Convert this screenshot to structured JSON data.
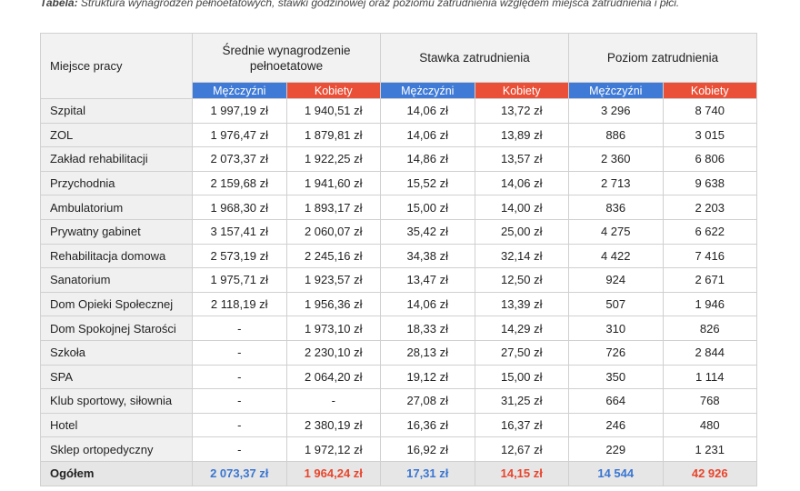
{
  "caption": {
    "label": "Tabela:",
    "text": "Struktura wynagrodzeń pełnoetatowych, stawki godzinowej oraz poziomu zatrudnienia względem miejsca zatrudnienia i płci."
  },
  "table": {
    "header": {
      "first": "Miejsce pracy",
      "groups": [
        "Średnie wynagrodzenie pełnoetatowe",
        "Stawka zatrudnienia",
        "Poziom zatrudnienia"
      ],
      "sub": [
        "Mężczyźni",
        "Kobiety",
        "Mężczyźni",
        "Kobiety",
        "Mężczyźni",
        "Kobiety"
      ]
    },
    "rows": [
      [
        "Szpital",
        "1 997,19 zł",
        "1 940,51 zł",
        "14,06 zł",
        "13,72 zł",
        "3 296",
        "8 740"
      ],
      [
        "ZOL",
        "1 976,47 zł",
        "1 879,81 zł",
        "14,06 zł",
        "13,89 zł",
        "886",
        "3 015"
      ],
      [
        "Zakład rehabilitacji",
        "2 073,37 zł",
        "1 922,25 zł",
        "14,86 zł",
        "13,57 zł",
        "2 360",
        "6 806"
      ],
      [
        "Przychodnia",
        "2 159,68 zł",
        "1 941,60 zł",
        "15,52 zł",
        "14,06 zł",
        "2 713",
        "9 638"
      ],
      [
        "Ambulatorium",
        "1 968,30 zł",
        "1 893,17 zł",
        "15,00 zł",
        "14,00 zł",
        "836",
        "2 203"
      ],
      [
        "Prywatny gabinet",
        "3 157,41 zł",
        "2 060,07 zł",
        "35,42 zł",
        "25,00 zł",
        "4 275",
        "6 622"
      ],
      [
        "Rehabilitacja domowa",
        "2 573,19 zł",
        "2 245,16 zł",
        "34,38 zł",
        "32,14 zł",
        "4 422",
        "7 416"
      ],
      [
        "Sanatorium",
        "1 975,71 zł",
        "1 923,57 zł",
        "13,47 zł",
        "12,50 zł",
        "924",
        "2 671"
      ],
      [
        "Dom Opieki Społecznej",
        "2 118,19 zł",
        "1 956,36 zł",
        "14,06 zł",
        "13,39 zł",
        "507",
        "1 946"
      ],
      [
        "Dom Spokojnej Starości",
        "-",
        "1 973,10 zł",
        "18,33 zł",
        "14,29 zł",
        "310",
        "826"
      ],
      [
        "Szkoła",
        "-",
        "2 230,10 zł",
        "28,13 zł",
        "27,50 zł",
        "726",
        "2 844"
      ],
      [
        "SPA",
        "-",
        "2 064,20 zł",
        "19,12 zł",
        "15,00 zł",
        "350",
        "1 114"
      ],
      [
        "Klub sportowy, siłownia",
        "-",
        "-",
        "27,08 zł",
        "31,25 zł",
        "664",
        "768"
      ],
      [
        "Hotel",
        "-",
        "2 380,19 zł",
        "16,36 zł",
        "16,37 zł",
        "246",
        "480"
      ],
      [
        "Sklep ortopedyczny",
        "-",
        "1 972,12 zł",
        "16,92 zł",
        "12,67 zł",
        "229",
        "1 231"
      ]
    ],
    "total": [
      "Ogółem",
      "2 073,37 zł",
      "1 964,24 zł",
      "17,31 zł",
      "14,15 zł",
      "14 544",
      "42 926"
    ]
  }
}
